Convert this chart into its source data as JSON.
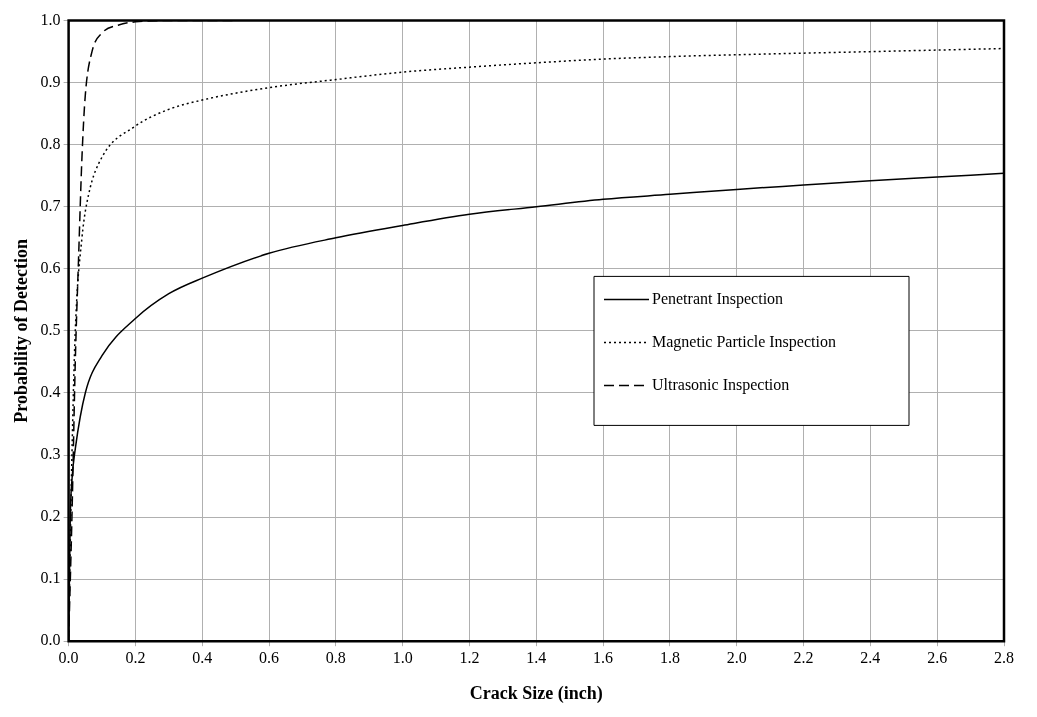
{
  "chart_data": {
    "type": "line",
    "xlabel": "Crack Size (inch)",
    "ylabel": "Probability of Detection",
    "xlim": [
      0,
      2.8
    ],
    "xticks": [
      {
        "value": 0,
        "label": "0.0"
      },
      {
        "value": 0.2,
        "label": "0.2"
      },
      {
        "value": 0.4,
        "label": "0.4"
      },
      {
        "value": 0.6,
        "label": "0.6"
      },
      {
        "value": 0.8,
        "label": "0.8"
      },
      {
        "value": 1,
        "label": "1.0"
      },
      {
        "value": 1.2,
        "label": "1.2"
      },
      {
        "value": 1.4,
        "label": "1.4"
      },
      {
        "value": 1.6,
        "label": "1.6"
      },
      {
        "value": 1.8,
        "label": "1.8"
      },
      {
        "value": 2,
        "label": "2.0"
      },
      {
        "value": 2.2,
        "label": "2.2"
      },
      {
        "value": 2.4,
        "label": "2.4"
      },
      {
        "value": 2.6,
        "label": "2.6"
      },
      {
        "value": 2.8,
        "label": "2.8"
      }
    ],
    "ylim": [
      0,
      1
    ],
    "yticks": [
      {
        "value": 0,
        "label": "0.0"
      },
      {
        "value": 0.1,
        "label": "0.1"
      },
      {
        "value": 0.2,
        "label": "0.2"
      },
      {
        "value": 0.3,
        "label": "0.3"
      },
      {
        "value": 0.4,
        "label": "0.4"
      },
      {
        "value": 0.5,
        "label": "0.5"
      },
      {
        "value": 0.6,
        "label": "0.6"
      },
      {
        "value": 0.7,
        "label": "0.7"
      },
      {
        "value": 0.8,
        "label": "0.8"
      },
      {
        "value": 0.9,
        "label": "0.9"
      },
      {
        "value": 1,
        "label": "1.0"
      }
    ],
    "grid": true,
    "legend": "right",
    "marker": "none",
    "series": [
      {
        "name": "Penetrant Inspection",
        "color": "#000000",
        "line_style": "solid",
        "x": [
          0,
          0.005,
          0.01,
          0.02,
          0.05,
          0.1,
          0.2,
          0.3,
          0.4,
          0.6,
          0.8,
          1.0,
          1.2,
          1.4,
          1.6,
          1.8,
          2.0,
          2.2,
          2.4,
          2.6,
          2.8
        ],
        "values": [
          0,
          0.2,
          0.26,
          0.31,
          0.4,
          0.46,
          0.52,
          0.56,
          0.585,
          0.625,
          0.65,
          0.67,
          0.688,
          0.7,
          0.712,
          0.72,
          0.728,
          0.735,
          0.742,
          0.748,
          0.754
        ]
      },
      {
        "name": "Magnetic Particle Inspection",
        "color": "#000000",
        "line_style": "dotted",
        "x": [
          0,
          0.01,
          0.02,
          0.04,
          0.06,
          0.1,
          0.2,
          0.3,
          0.4,
          0.6,
          0.8,
          1.0,
          1.2,
          1.4,
          1.6,
          1.8,
          2.0,
          2.4,
          2.8
        ],
        "values": [
          0,
          0.3,
          0.5,
          0.65,
          0.72,
          0.78,
          0.83,
          0.857,
          0.872,
          0.892,
          0.905,
          0.917,
          0.925,
          0.932,
          0.938,
          0.942,
          0.945,
          0.95,
          0.955
        ]
      },
      {
        "name": "Ultrasonic Inspection",
        "color": "#000000",
        "line_style": "dashed",
        "x": [
          0,
          0.01,
          0.02,
          0.03,
          0.04,
          0.05,
          0.07,
          0.1,
          0.15,
          0.2,
          0.3,
          0.5
        ],
        "values": [
          0,
          0.2,
          0.45,
          0.62,
          0.78,
          0.88,
          0.95,
          0.98,
          0.993,
          0.998,
          1.0,
          1.0
        ]
      }
    ]
  }
}
